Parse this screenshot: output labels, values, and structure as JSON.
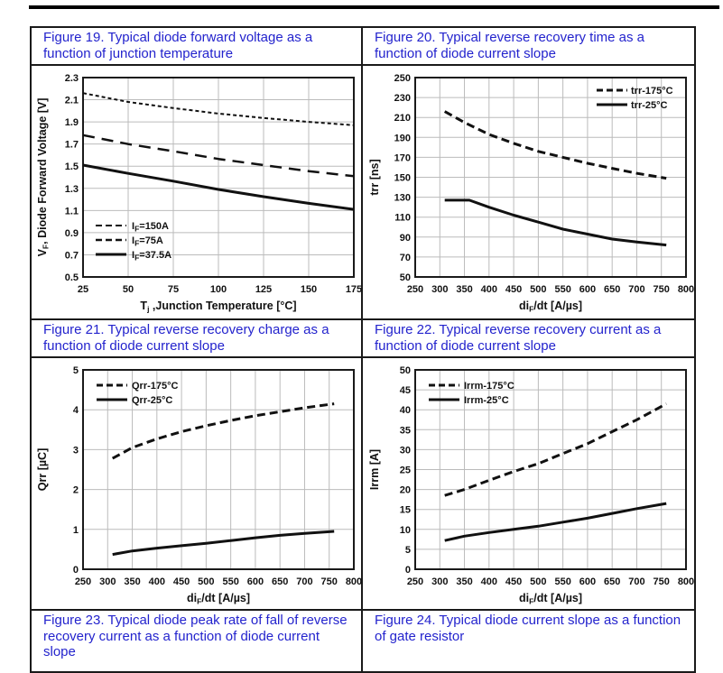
{
  "captions": {
    "fig19": "Figure 19. Typical diode forward voltage as a function of junction temperature",
    "fig20": "Figure 20. Typical reverse recovery time as a function of diode current slope",
    "fig21": "Figure 21. Typical reverse recovery charge as a function of diode current slope",
    "fig22": "Figure 22. Typical reverse recovery current as a function of diode current slope",
    "fig23": "Figure 23. Typical diode peak rate of fall of reverse recovery current as a function of diode current slope",
    "fig24": "Figure 24. Typical diode current slope as a function of gate resistor"
  },
  "colors": {
    "caption_blue": "#2323cd",
    "grid": "#bbbbbb",
    "frame": "#1a1a1a",
    "curve": "#111111",
    "background": "#ffffff"
  },
  "chart_data": [
    {
      "id": "fig19",
      "type": "line",
      "title": "Typical diode forward voltage as a function of junction temperature",
      "xlabel": "Tj ,Junction Temperature [°C]",
      "ylabel": "VF,  Diode Forward Voltage [V]",
      "xlabel_parts": [
        {
          "t": "T"
        },
        {
          "t": "j",
          "sub": true
        },
        {
          "t": " ,Junction Temperature [°C]"
        }
      ],
      "ylabel_parts": [
        {
          "t": "V"
        },
        {
          "t": "F",
          "sub": true
        },
        {
          "t": ",  Diode Forward Voltage [V]"
        }
      ],
      "xlim": [
        25,
        175
      ],
      "xstep": 25,
      "xdec": 0,
      "ylim": [
        0.5,
        2.3
      ],
      "ystep": 0.2,
      "ydec": 1,
      "grid": true,
      "legend_pos": "bl",
      "series": [
        {
          "name": "IF=150A",
          "name_parts": [
            {
              "t": "I"
            },
            {
              "t": "F",
              "sub": true
            },
            {
              "t": "=150A"
            }
          ],
          "dash": "4 3",
          "width": 2,
          "points": [
            [
              25,
              2.16
            ],
            [
              50,
              2.08
            ],
            [
              75,
              2.025
            ],
            [
              100,
              1.975
            ],
            [
              125,
              1.935
            ],
            [
              150,
              1.9
            ],
            [
              175,
              1.87
            ]
          ]
        },
        {
          "name": "IF=75A",
          "name_parts": [
            {
              "t": "I"
            },
            {
              "t": "F",
              "sub": true
            },
            {
              "t": "=75A"
            }
          ],
          "dash": "13 8",
          "width": 2.5,
          "points": [
            [
              25,
              1.78
            ],
            [
              50,
              1.7
            ],
            [
              75,
              1.635
            ],
            [
              100,
              1.565
            ],
            [
              125,
              1.51
            ],
            [
              150,
              1.455
            ],
            [
              175,
              1.41
            ]
          ]
        },
        {
          "name": "IF=37.5A",
          "name_parts": [
            {
              "t": "I"
            },
            {
              "t": "F",
              "sub": true
            },
            {
              "t": "=37.5A"
            }
          ],
          "dash": "",
          "width": 3,
          "points": [
            [
              25,
              1.51
            ],
            [
              50,
              1.435
            ],
            [
              75,
              1.365
            ],
            [
              100,
              1.29
            ],
            [
              125,
              1.225
            ],
            [
              150,
              1.165
            ],
            [
              175,
              1.11
            ]
          ]
        }
      ]
    },
    {
      "id": "fig20",
      "type": "line",
      "title": "Typical reverse recovery time as a function of diode current slope",
      "xlabel": "diF/dt  [A/µs]",
      "ylabel": "trr [ns]",
      "xlabel_parts": [
        {
          "t": "di"
        },
        {
          "t": "F",
          "sub": true
        },
        {
          "t": "/dt  [A/µs]"
        }
      ],
      "ylabel_parts": [
        {
          "t": "trr [ns]"
        }
      ],
      "xlim": [
        250,
        800
      ],
      "xstep": 50,
      "xdec": 0,
      "ylim": [
        50,
        250
      ],
      "ystep": 20,
      "ydec": 0,
      "grid": true,
      "legend_pos": "tr",
      "series": [
        {
          "name": "trr-175°C",
          "name_parts": [
            {
              "t": "trr-175°C"
            }
          ],
          "dash": "9 5",
          "width": 3,
          "points": [
            [
              310,
              216
            ],
            [
              350,
              205
            ],
            [
              400,
              193
            ],
            [
              450,
              184
            ],
            [
              500,
              176
            ],
            [
              550,
              170
            ],
            [
              600,
              164
            ],
            [
              650,
              159
            ],
            [
              700,
              154
            ],
            [
              760,
              149
            ]
          ]
        },
        {
          "name": "trr-25°C",
          "name_parts": [
            {
              "t": "trr-25°C"
            }
          ],
          "dash": "",
          "width": 3,
          "points": [
            [
              310,
              127
            ],
            [
              360,
              127
            ],
            [
              400,
              120
            ],
            [
              450,
              112
            ],
            [
              500,
              105
            ],
            [
              550,
              98
            ],
            [
              600,
              93
            ],
            [
              650,
              88
            ],
            [
              700,
              85
            ],
            [
              760,
              82
            ]
          ]
        }
      ]
    },
    {
      "id": "fig21",
      "type": "line",
      "title": "Typical reverse recovery charge as a function of diode current slope",
      "xlabel": "diF/dt  [A/µs]",
      "ylabel": "Qrr [µC]",
      "xlabel_parts": [
        {
          "t": "di"
        },
        {
          "t": "F",
          "sub": true
        },
        {
          "t": "/dt  [A/µs]"
        }
      ],
      "ylabel_parts": [
        {
          "t": "Qrr [µC]"
        }
      ],
      "xlim": [
        250,
        800
      ],
      "xstep": 50,
      "xdec": 0,
      "ylim": [
        0,
        5
      ],
      "ystep": 1,
      "ydec": 0,
      "grid": true,
      "legend_pos": "tl",
      "series": [
        {
          "name": "Qrr-175°C",
          "name_parts": [
            {
              "t": "Qrr-175°C"
            }
          ],
          "dash": "9 5",
          "width": 3,
          "points": [
            [
              310,
              2.78
            ],
            [
              350,
              3.05
            ],
            [
              400,
              3.27
            ],
            [
              450,
              3.45
            ],
            [
              500,
              3.6
            ],
            [
              550,
              3.73
            ],
            [
              600,
              3.85
            ],
            [
              650,
              3.95
            ],
            [
              700,
              4.05
            ],
            [
              760,
              4.15
            ]
          ]
        },
        {
          "name": "Qrr-25°C",
          "name_parts": [
            {
              "t": "Qrr-25°C"
            }
          ],
          "dash": "",
          "width": 3,
          "points": [
            [
              310,
              0.37
            ],
            [
              350,
              0.46
            ],
            [
              400,
              0.53
            ],
            [
              450,
              0.59
            ],
            [
              500,
              0.65
            ],
            [
              550,
              0.72
            ],
            [
              600,
              0.79
            ],
            [
              650,
              0.85
            ],
            [
              700,
              0.9
            ],
            [
              760,
              0.95
            ]
          ]
        }
      ]
    },
    {
      "id": "fig22",
      "type": "line",
      "title": "Typical reverse recovery current as a function of diode current slope",
      "xlabel": "diF/dt  [A/µs]",
      "ylabel": "Irrm [A]",
      "xlabel_parts": [
        {
          "t": "di"
        },
        {
          "t": "F",
          "sub": true
        },
        {
          "t": "/dt  [A/µs]"
        }
      ],
      "ylabel_parts": [
        {
          "t": "Irrm [A]"
        }
      ],
      "xlim": [
        250,
        800
      ],
      "xstep": 50,
      "xdec": 0,
      "ylim": [
        0,
        50
      ],
      "ystep": 5,
      "ydec": 0,
      "grid": true,
      "legend_pos": "tl",
      "series": [
        {
          "name": "Irrm-175°C",
          "name_parts": [
            {
              "t": "Irrm-175°C"
            }
          ],
          "dash": "9 5",
          "width": 3,
          "points": [
            [
              310,
              18.5
            ],
            [
              350,
              20
            ],
            [
              400,
              22.3
            ],
            [
              450,
              24.5
            ],
            [
              500,
              26.5
            ],
            [
              550,
              29
            ],
            [
              600,
              31.5
            ],
            [
              650,
              34.5
            ],
            [
              700,
              37.5
            ],
            [
              760,
              41.5
            ]
          ]
        },
        {
          "name": "Irrm-25°C",
          "name_parts": [
            {
              "t": "Irrm-25°C"
            }
          ],
          "dash": "",
          "width": 3,
          "points": [
            [
              310,
              7.2
            ],
            [
              350,
              8.3
            ],
            [
              400,
              9.2
            ],
            [
              450,
              10
            ],
            [
              500,
              10.8
            ],
            [
              550,
              11.8
            ],
            [
              600,
              12.8
            ],
            [
              650,
              14
            ],
            [
              700,
              15.2
            ],
            [
              760,
              16.5
            ]
          ]
        }
      ]
    }
  ]
}
